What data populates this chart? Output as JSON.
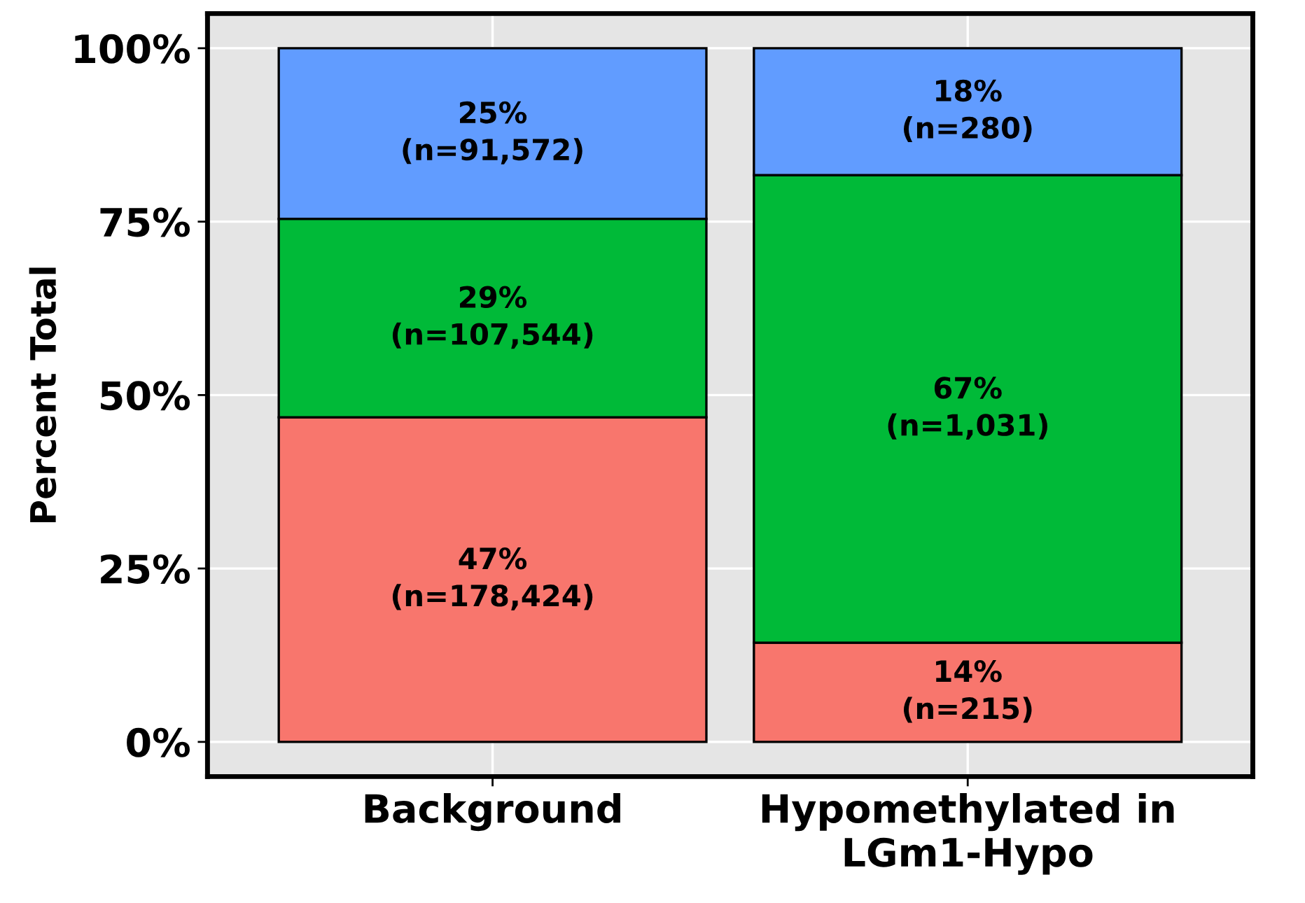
{
  "chart_data": {
    "type": "bar",
    "stacked": true,
    "ylabel": "Percent Total",
    "categories": [
      "Background",
      "Hypomethylated in\nLGm1-Hypo"
    ],
    "series": [
      {
        "color": "#f8766d",
        "values": [
          46.8,
          14.3
        ],
        "value_labels": [
          "47%\n(n=178,424)",
          "14%\n(n=215)"
        ]
      },
      {
        "color": "#00ba38",
        "values": [
          28.6,
          67.4
        ],
        "value_labels": [
          "29%\n(n=107,544)",
          "67%\n(n=1,031)"
        ]
      },
      {
        "color": "#619cff",
        "values": [
          24.6,
          18.3
        ],
        "value_labels": [
          "25%\n(n=91,572)",
          "18%\n(n=280)"
        ]
      }
    ],
    "ylim": [
      -5,
      105
    ],
    "yticks": [
      {
        "value": 0,
        "label": "0%"
      },
      {
        "value": 25,
        "label": "25%"
      },
      {
        "value": 50,
        "label": "50%"
      },
      {
        "value": 75,
        "label": "75%"
      },
      {
        "value": 100,
        "label": "100%"
      }
    ],
    "grid": true
  }
}
